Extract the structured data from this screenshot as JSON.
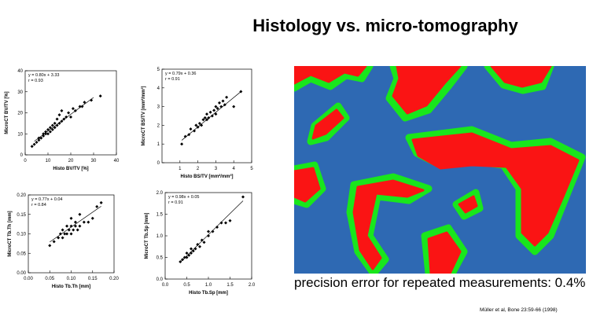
{
  "slide": {
    "title": "Histology vs. micro-tomography",
    "caption": "precision error for repeated measurements: 0.4%",
    "citation": "Müller et al, Bone 23:59-66 (1998)"
  },
  "chart_data": [
    {
      "type": "scatter",
      "xlabel": "Histo BV/TV [%]",
      "ylabel": "MicroCT BV/TV [%]",
      "annotations": [
        "y = 0.80x + 3.33",
        "r = 0.93"
      ],
      "xlim": [
        0,
        40
      ],
      "ylim": [
        0,
        40
      ],
      "xticks": [
        0,
        10,
        20,
        30,
        40
      ],
      "yticks": [
        0,
        10,
        20,
        30,
        40
      ],
      "color": "#000000",
      "x": [
        3,
        4,
        5,
        6,
        6,
        7,
        8,
        8,
        9,
        9,
        10,
        10,
        11,
        11,
        12,
        12,
        13,
        13,
        14,
        14,
        15,
        15,
        16,
        16,
        17,
        18,
        19,
        20,
        21,
        22,
        24,
        25,
        26,
        29,
        33
      ],
      "values": [
        4,
        5,
        6,
        8,
        7,
        8,
        9,
        10,
        10,
        11,
        12,
        10,
        13,
        11,
        14,
        12,
        13,
        15,
        14,
        17,
        15,
        19,
        16,
        21,
        17,
        18,
        20,
        18,
        22,
        21,
        23,
        23,
        25,
        26,
        28
      ],
      "fit_line": {
        "x": [
          4,
          30
        ],
        "y": [
          6.5,
          27.3
        ]
      }
    },
    {
      "type": "scatter",
      "xlabel": "Histo BS/TV [mm²/mm³]",
      "ylabel": "MicroCT BS/TV [mm²/mm³]",
      "annotations": [
        "y = 0.79x + 0.36",
        "r = 0.91"
      ],
      "xlim": [
        0,
        5
      ],
      "ylim": [
        0,
        5
      ],
      "xticks": [
        1,
        2,
        3,
        4,
        5
      ],
      "yticks": [
        0,
        1,
        2,
        3,
        4,
        5
      ],
      "color": "#000000",
      "x": [
        1.1,
        1.3,
        1.5,
        1.6,
        1.8,
        1.9,
        2.0,
        2.1,
        2.2,
        2.3,
        2.4,
        2.5,
        2.5,
        2.6,
        2.7,
        2.8,
        2.9,
        3.0,
        3.0,
        3.1,
        3.2,
        3.3,
        3.4,
        3.5,
        3.6,
        4.0,
        4.4
      ],
      "values": [
        1.0,
        1.4,
        1.5,
        1.8,
        1.7,
        2.0,
        1.9,
        2.1,
        2.0,
        2.3,
        2.4,
        2.3,
        2.6,
        2.4,
        2.7,
        2.5,
        2.8,
        2.6,
        3.0,
        2.9,
        3.2,
        3.0,
        3.3,
        3.1,
        3.5,
        3.0,
        3.8
      ],
      "fit_line": {
        "x": [
          1.1,
          4.4
        ],
        "y": [
          1.2,
          3.8
        ]
      }
    },
    {
      "type": "scatter",
      "xlabel": "Histo Tb.Th [mm]",
      "ylabel": "MicroCT Tb.Th [mm]",
      "annotations": [
        "y = 0.77x + 0.04",
        "r = 0.84"
      ],
      "xlim": [
        0,
        0.2
      ],
      "ylim": [
        0,
        0.2
      ],
      "xticks": [
        {
          "value": 0,
          "label": "0.00"
        },
        {
          "value": 0.05,
          "label": "0.05"
        },
        {
          "value": 0.1,
          "label": "0.10"
        },
        {
          "value": 0.15,
          "label": "0.15"
        },
        {
          "value": 0.2,
          "label": "0.20"
        }
      ],
      "yticks": [
        {
          "value": 0,
          "label": "0.00"
        },
        {
          "value": 0.05,
          "label": "0.05"
        },
        {
          "value": 0.1,
          "label": "0.10"
        },
        {
          "value": 0.15,
          "label": "0.15"
        },
        {
          "value": 0.2,
          "label": "0.20"
        }
      ],
      "color": "#000000",
      "x": [
        0.05,
        0.06,
        0.07,
        0.075,
        0.08,
        0.08,
        0.085,
        0.09,
        0.09,
        0.095,
        0.1,
        0.1,
        0.1,
        0.105,
        0.11,
        0.11,
        0.115,
        0.12,
        0.12,
        0.13,
        0.14,
        0.15,
        0.16,
        0.17
      ],
      "values": [
        0.07,
        0.08,
        0.09,
        0.1,
        0.09,
        0.11,
        0.1,
        0.1,
        0.12,
        0.11,
        0.1,
        0.12,
        0.14,
        0.11,
        0.12,
        0.13,
        0.11,
        0.12,
        0.15,
        0.13,
        0.13,
        0.14,
        0.17,
        0.18
      ],
      "fit_line": {
        "x": [
          0.05,
          0.17
        ],
        "y": [
          0.079,
          0.171
        ]
      }
    },
    {
      "type": "scatter",
      "xlabel": "Histo Tb.Sp [mm]",
      "ylabel": "MicroCT Tb.Sp [mm]",
      "annotations": [
        "y = 0.98x + 0.05",
        "r = 0.91"
      ],
      "xlim": [
        0,
        2
      ],
      "ylim": [
        0,
        2
      ],
      "xticks": [
        {
          "value": 0,
          "label": "0.0"
        },
        {
          "value": 0.5,
          "label": "0.5"
        },
        {
          "value": 1,
          "label": "1.0"
        },
        {
          "value": 1.5,
          "label": "1.5"
        },
        {
          "value": 2,
          "label": "2.0"
        }
      ],
      "yticks": [
        {
          "value": 0,
          "label": "0.0"
        },
        {
          "value": 0.5,
          "label": "0.5"
        },
        {
          "value": 1,
          "label": "1.0"
        },
        {
          "value": 1.5,
          "label": "1.5"
        },
        {
          "value": 2,
          "label": "2.0"
        }
      ],
      "color": "#000000",
      "x": [
        0.35,
        0.4,
        0.45,
        0.5,
        0.5,
        0.55,
        0.6,
        0.6,
        0.65,
        0.7,
        0.75,
        0.8,
        0.85,
        0.9,
        1.0,
        1.0,
        1.1,
        1.2,
        1.3,
        1.4,
        1.5,
        1.8
      ],
      "values": [
        0.4,
        0.45,
        0.5,
        0.5,
        0.6,
        0.55,
        0.6,
        0.7,
        0.65,
        0.7,
        0.8,
        0.75,
        0.9,
        0.85,
        1.0,
        1.1,
        1.1,
        1.2,
        1.3,
        1.3,
        1.35,
        1.9
      ],
      "fit_line": {
        "x": [
          0.35,
          1.8
        ],
        "y": [
          0.39,
          1.81
        ]
      }
    }
  ]
}
